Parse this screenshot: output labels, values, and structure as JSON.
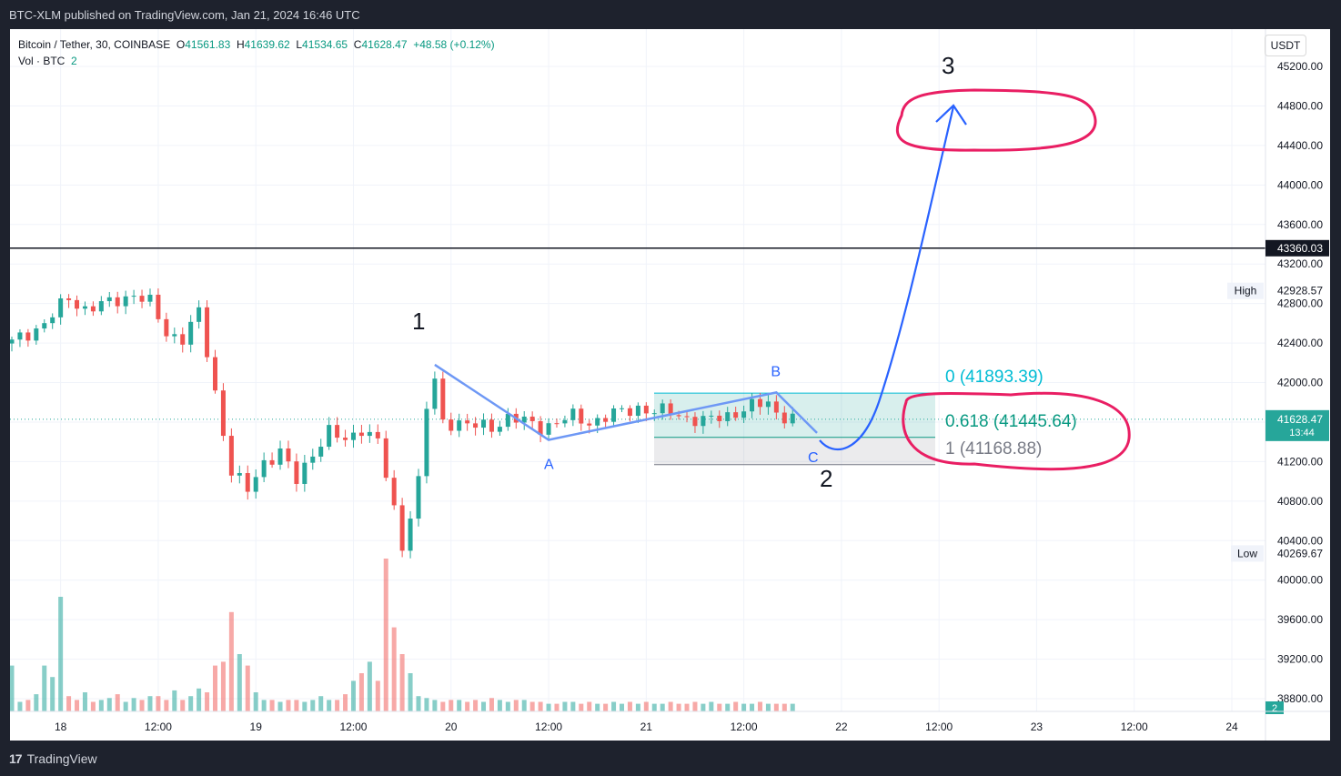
{
  "header": {
    "publish_text": "BTC-XLM published on TradingView.com, Jan 21, 2024 16:46 UTC"
  },
  "legend": {
    "symbol": "Bitcoin / Tether, 30, COINBASE",
    "open_label": "O",
    "open": "41561.83",
    "high_label": "H",
    "high": "41639.62",
    "low_label": "L",
    "low": "41534.65",
    "close_label": "C",
    "close": "41628.47",
    "change": "+48.58 (+0.12%)",
    "vol_label": "Vol · BTC",
    "vol": "2"
  },
  "currency_button": "USDT",
  "footer": {
    "brand": "TradingView",
    "logo_mark": "17"
  },
  "colors": {
    "up": "#26a69a",
    "down": "#ef5350",
    "wave": "#2962ff",
    "circle": "#e91e63",
    "fib_zero": "#00bcd4",
    "fib_618": "#089981",
    "fib_one": "#787b86"
  },
  "chart_data": {
    "type": "candlestick",
    "symbol": "BTC/USDT",
    "interval": "30",
    "ylim": [
      38600,
      45500
    ],
    "y_ticks": [
      38800,
      39200,
      39600,
      40000,
      40400,
      40800,
      41200,
      41600,
      42000,
      42400,
      42800,
      43200,
      43600,
      44000,
      44400,
      44800,
      45200
    ],
    "x_ticks": [
      "18",
      "12:00",
      "19",
      "12:00",
      "20",
      "12:00",
      "21",
      "12:00",
      "22",
      "12:00",
      "23",
      "12:00",
      "24"
    ],
    "x_tick_positions": [
      6,
      18,
      30,
      42,
      54,
      66,
      78,
      90,
      102,
      114,
      126,
      138,
      150
    ],
    "last_price": "41628.47",
    "countdown": "13:44",
    "horizontal_line": "43360.03",
    "high_marker": {
      "label": "High",
      "value": "42928.57"
    },
    "low_marker": {
      "label": "Low",
      "value": "40269.67"
    },
    "volume_badge": "2",
    "anchors": [
      [
        0,
        42400
      ],
      [
        4,
        42600
      ],
      [
        7,
        42850
      ],
      [
        9,
        42750
      ],
      [
        12,
        42800
      ],
      [
        15,
        42900
      ],
      [
        17,
        42800
      ],
      [
        19,
        42500
      ],
      [
        21,
        42450
      ],
      [
        23,
        42700
      ],
      [
        25,
        41900
      ],
      [
        27,
        41100
      ],
      [
        29,
        40900
      ],
      [
        31,
        41200
      ],
      [
        33,
        41300
      ],
      [
        35,
        41000
      ],
      [
        37,
        41300
      ],
      [
        39,
        41500
      ],
      [
        41,
        41400
      ],
      [
        43,
        41550
      ],
      [
        45,
        41400
      ],
      [
        47,
        40700
      ],
      [
        48,
        40350
      ],
      [
        50,
        41000
      ],
      [
        51,
        41750
      ],
      [
        52,
        42000
      ],
      [
        53,
        41600
      ],
      [
        55,
        41600
      ],
      [
        57,
        41550
      ],
      [
        59,
        41550
      ],
      [
        61,
        41650
      ],
      [
        63,
        41600
      ],
      [
        65,
        41550
      ],
      [
        67,
        41600
      ],
      [
        69,
        41650
      ],
      [
        71,
        41600
      ],
      [
        73,
        41650
      ],
      [
        75,
        41700
      ],
      [
        77,
        41750
      ],
      [
        79,
        41700
      ],
      [
        81,
        41700
      ],
      [
        83,
        41650
      ],
      [
        85,
        41600
      ],
      [
        87,
        41650
      ],
      [
        89,
        41700
      ],
      [
        91,
        41750
      ],
      [
        93,
        41800
      ],
      [
        94,
        41700
      ],
      [
        96,
        41630
      ]
    ],
    "volumes": [
      120,
      25,
      30,
      45,
      120,
      90,
      300,
      40,
      30,
      50,
      25,
      30,
      35,
      45,
      25,
      35,
      30,
      40,
      40,
      30,
      55,
      30,
      40,
      60,
      50,
      120,
      130,
      260,
      150,
      120,
      50,
      30,
      30,
      25,
      30,
      30,
      25,
      30,
      40,
      30,
      30,
      45,
      80,
      100,
      130,
      80,
      400,
      220,
      150,
      100,
      40,
      35,
      30,
      25,
      30,
      30,
      25,
      30,
      25,
      35,
      30,
      25,
      30,
      30,
      25,
      25,
      20,
      20,
      25,
      25,
      20,
      25,
      20,
      20,
      25,
      20,
      25,
      20,
      25,
      20,
      20,
      25,
      20,
      20,
      25,
      20,
      25,
      20,
      20,
      25,
      20,
      20,
      25,
      20,
      20,
      20,
      20
    ],
    "annotations": {
      "wave_labels": [
        "1",
        "2",
        "3"
      ],
      "abc_labels": [
        "A",
        "B",
        "C"
      ],
      "fib_levels": [
        {
          "ratio": "0",
          "price": "41893.39"
        },
        {
          "ratio": "0.618",
          "price": "41445.64"
        },
        {
          "ratio": "1",
          "price": "41168.88"
        }
      ]
    }
  }
}
